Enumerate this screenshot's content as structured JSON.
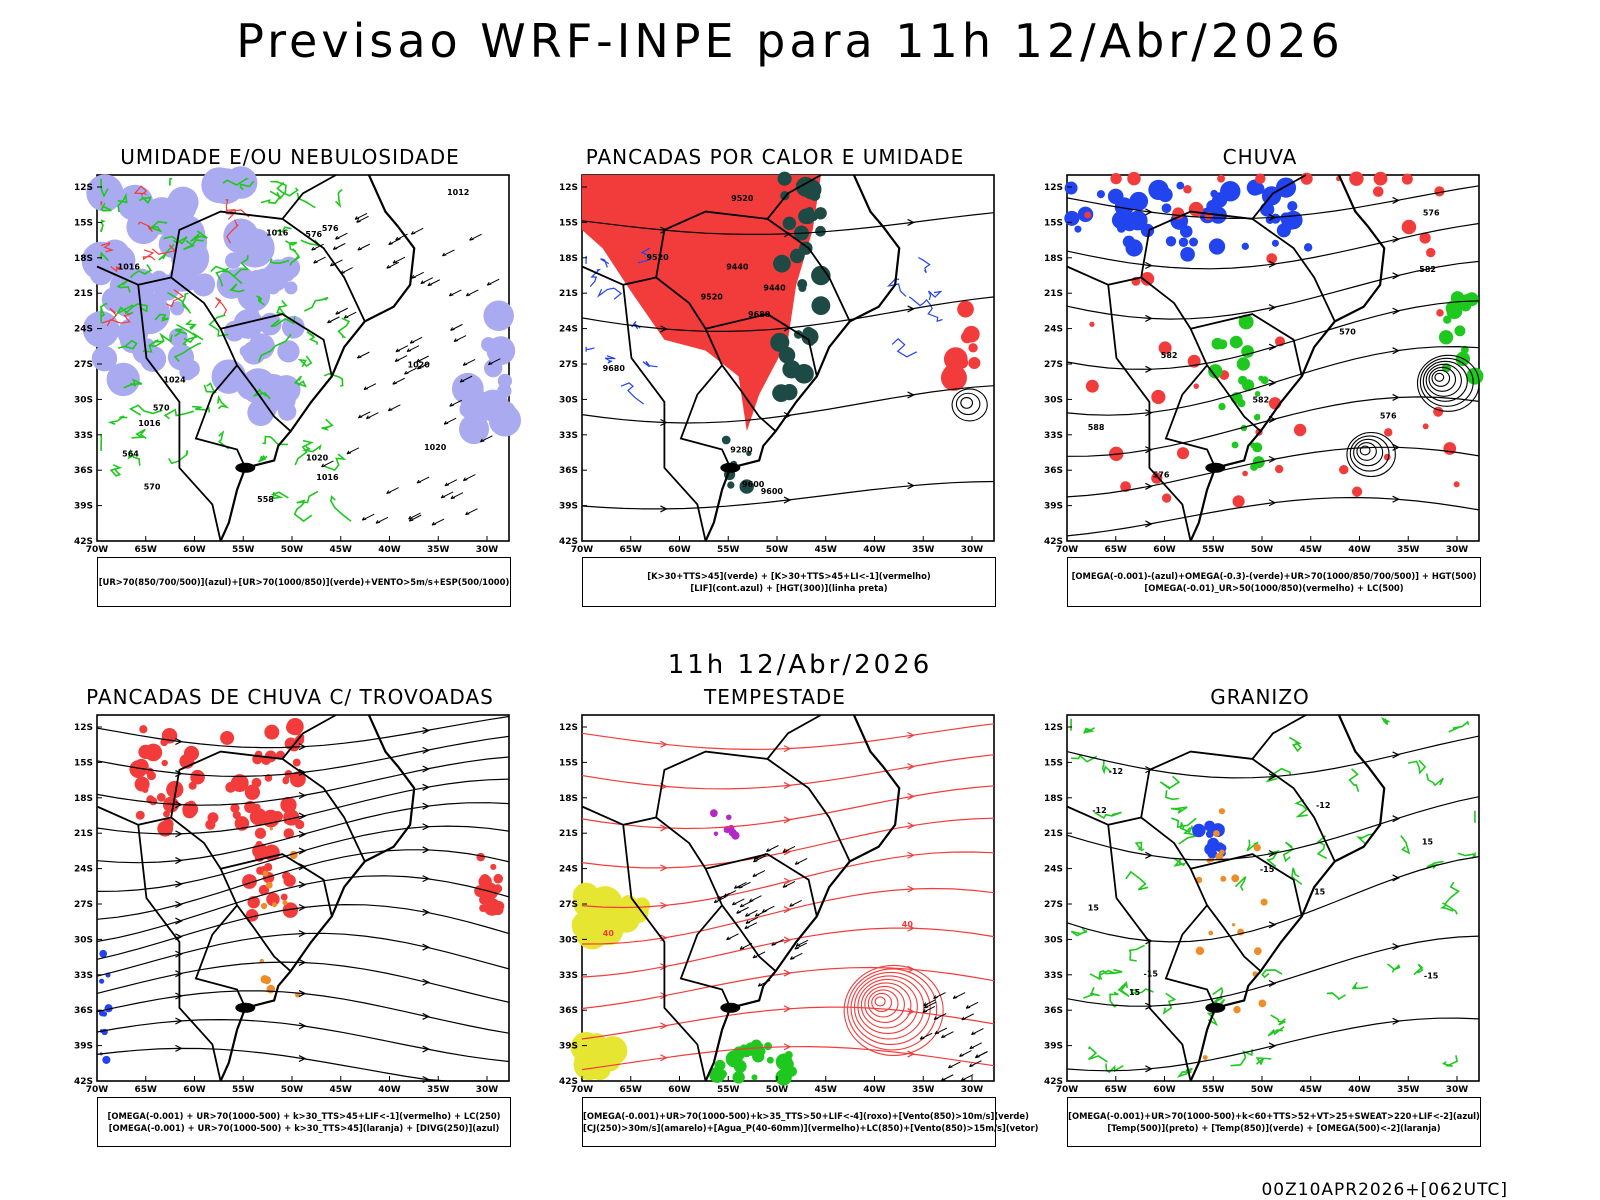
{
  "page": {
    "title": "Previsao WRF-INPE  para 11h 12/Abr/2026",
    "subtitle": "11h 12/Abr/2026",
    "footer": "00Z10APR2026+[062UTC]"
  },
  "axes": {
    "lat_labels": [
      "12S",
      "15S",
      "18S",
      "21S",
      "24S",
      "27S",
      "30S",
      "33S",
      "36S",
      "39S",
      "42S"
    ],
    "lon_labels": [
      "70W",
      "65W",
      "60W",
      "55W",
      "50W",
      "45W",
      "40W",
      "35W",
      "30W"
    ]
  },
  "colors": {
    "red": "#f23c3c",
    "green": "#1ec81e",
    "blue": "#2244ee",
    "lavender": "#aaaaf0",
    "darkteal": "#1e4a46",
    "orange": "#f08c28",
    "yellow": "#e6e632",
    "purple": "#b428c8",
    "black": "#000000"
  },
  "panels": [
    {
      "id": "umidade",
      "title": "UMIDADE E/OU NEBULOSIDADE",
      "legend": [
        "[UR>70(850/700/500)](azul)+[UR>70(1000/850)](verde)+VENTO>5m/s+ESP(500/1000)"
      ],
      "contour_labels": [
        "1016",
        "1020",
        "1016",
        "1020",
        "1016",
        "1020",
        "1024",
        "1012",
        "1016",
        "576",
        "570",
        "564",
        "558",
        "576",
        "570"
      ]
    },
    {
      "id": "pancadas-calor",
      "title": "PANCADAS POR CALOR E UMIDADE",
      "legend": [
        "[K>30+TTS>45](verde) + [K>30+TTS>45+LI<-1](vermelho)",
        "[LIF](cont.azul) + [HGT(300)](linha preta)"
      ],
      "contour_labels": [
        "9680",
        "9680",
        "9600",
        "9520",
        "9440",
        "9520",
        "9600",
        "9440",
        "9520",
        "9280"
      ]
    },
    {
      "id": "chuva",
      "title": "CHUVA",
      "legend": [
        "[OMEGA(-0.001)-(azul)+OMEGA(-0.3)-(verde)+UR>70(1000/850/700/500)] + HGT(500)",
        "[OMEGA(-0.01)_UR>50(1000/850)(vermelho) + LC(500)"
      ],
      "contour_labels": [
        "588",
        "582",
        "576",
        "570",
        "582",
        "576",
        "582",
        "576"
      ]
    },
    {
      "id": "trovoadas",
      "title": "PANCADAS DE CHUVA C/ TROVOADAS",
      "legend": [
        "[OMEGA(-0.001) + UR>70(1000-500) + k>30_TTS>45+LIF<-1](vermelho) + LC(250)",
        "[OMEGA(-0.001) + UR>70(1000-500) + k>30_TTS>45](laranja) + [DIVG(250)](azul)"
      ],
      "contour_labels": []
    },
    {
      "id": "tempestade",
      "title": "TEMPESTADE",
      "legend": [
        "[OMEGA(-0.001)+UR>70(1000-500)+k>35_TTS>50+LIF<-4](roxo)+[Vento(850)>10m/s](verde)",
        "[CJ(250)>30m/s](amarelo)+[Agua_P(40-60mm)](vermelho)+LC(850)+[Vento(850)>15m/s](vetor)"
      ],
      "contour_labels": [
        "40",
        "40"
      ]
    },
    {
      "id": "granizo",
      "title": "GRANIZO",
      "legend": [
        "[OMEGA(-0.001)+UR>70(1000-500)+k<60+TTS>52+VT>25+SWEAT>220+LIF<-2](azul)",
        "[Temp(500)](preto) + [Temp(850)](verde) + [OMEGA(500)<-2](laranja)"
      ],
      "contour_labels": [
        "15",
        "15",
        "-12",
        "-12",
        "-15",
        "-15",
        "-12",
        "-15",
        "15",
        "15"
      ]
    }
  ]
}
